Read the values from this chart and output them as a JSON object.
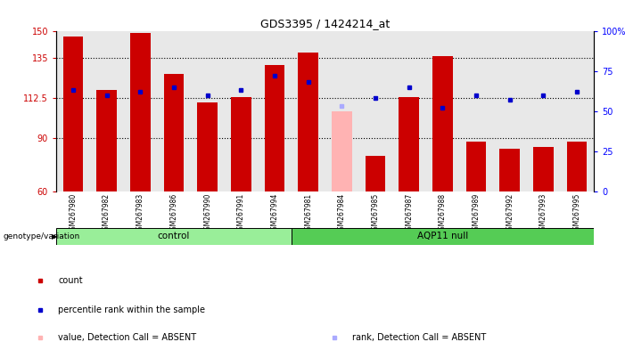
{
  "title": "GDS3395 / 1424214_at",
  "samples": [
    "GSM267980",
    "GSM267982",
    "GSM267983",
    "GSM267986",
    "GSM267990",
    "GSM267991",
    "GSM267994",
    "GSM267981",
    "GSM267984",
    "GSM267985",
    "GSM267987",
    "GSM267988",
    "GSM267989",
    "GSM267992",
    "GSM267993",
    "GSM267995"
  ],
  "bar_values": [
    147,
    117,
    149,
    126,
    110,
    113,
    131,
    138,
    105,
    80,
    113,
    136,
    88,
    84,
    85,
    88
  ],
  "bar_colors": [
    "#cc0000",
    "#cc0000",
    "#cc0000",
    "#cc0000",
    "#cc0000",
    "#cc0000",
    "#cc0000",
    "#cc0000",
    "#ffb3b3",
    "#cc0000",
    "#cc0000",
    "#cc0000",
    "#cc0000",
    "#cc0000",
    "#cc0000",
    "#cc0000"
  ],
  "blue_values": [
    63,
    60,
    62,
    65,
    60,
    63,
    72,
    68,
    53,
    58,
    65,
    52,
    60,
    57,
    60,
    62
  ],
  "blue_absent": [
    false,
    false,
    false,
    false,
    false,
    false,
    false,
    false,
    true,
    false,
    false,
    false,
    false,
    false,
    false,
    false
  ],
  "groups": [
    {
      "label": "control",
      "start": 0,
      "end": 7,
      "color": "#99ee99"
    },
    {
      "label": "AQP11 null",
      "start": 7,
      "end": 16,
      "color": "#55cc55"
    }
  ],
  "ylim_left": [
    60,
    150
  ],
  "ylim_right": [
    0,
    100
  ],
  "yticks_left": [
    60,
    90,
    112.5,
    135,
    150
  ],
  "ytick_labels_left": [
    "60",
    "90",
    "112.5",
    "135",
    "150"
  ],
  "yticks_right": [
    0,
    25,
    50,
    75,
    100
  ],
  "ytick_labels_right": [
    "0",
    "25",
    "50",
    "75",
    "100%"
  ],
  "grid_values": [
    90,
    112.5,
    135
  ],
  "bar_width": 0.6,
  "legend_items": [
    {
      "color": "#cc0000",
      "label": "count"
    },
    {
      "color": "#0000cc",
      "label": "percentile rank within the sample"
    },
    {
      "color": "#ffb3b3",
      "label": "value, Detection Call = ABSENT"
    },
    {
      "color": "#aaaaff",
      "label": "rank, Detection Call = ABSENT"
    }
  ],
  "group_label": "genotype/variation",
  "col_bg_color": "#e8e8e8"
}
